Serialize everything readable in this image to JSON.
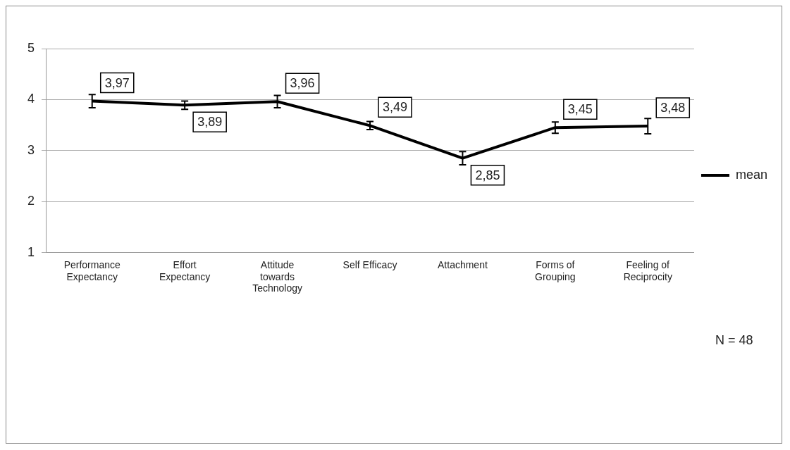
{
  "chart_data": {
    "type": "line",
    "categories": [
      "Performance Expectancy",
      "Effort Expectancy",
      "Attitude towards Technology",
      "Self Efficacy",
      "Attachment",
      "Forms of Grouping",
      "Feeling of Reciprocity"
    ],
    "series": [
      {
        "name": "mean",
        "color": "#000000",
        "values": [
          3.97,
          3.89,
          3.96,
          3.49,
          2.85,
          3.45,
          3.48
        ],
        "value_labels": [
          "3,97",
          "3,89",
          "3,96",
          "3,49",
          "2,85",
          "3,45",
          "3,48"
        ],
        "errors": [
          0.13,
          0.08,
          0.12,
          0.08,
          0.13,
          0.11,
          0.15
        ]
      }
    ],
    "ylim": [
      1,
      5
    ],
    "yticks": [
      1,
      2,
      3,
      4,
      5
    ],
    "grid": "y",
    "legend": "right",
    "marker": "none",
    "line_style": "solid",
    "annotations": [
      "N = 48"
    ]
  }
}
